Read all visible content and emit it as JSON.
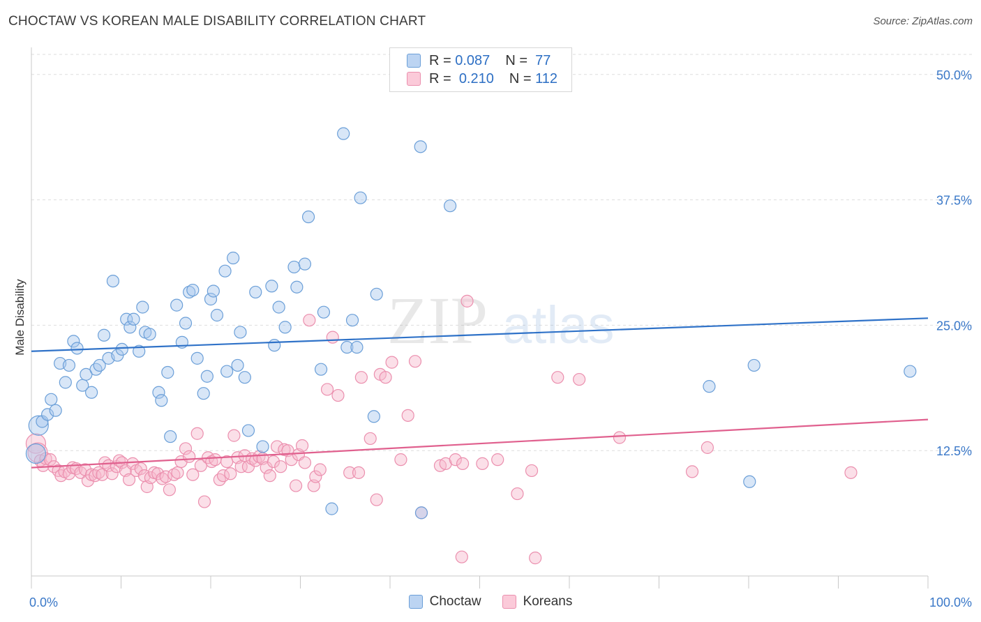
{
  "header": {
    "title": "CHOCTAW VS KOREAN MALE DISABILITY CORRELATION CHART",
    "source": "Source: ZipAtlas.com"
  },
  "legend_top": [
    {
      "r_label": "R =",
      "r_value": "0.087",
      "n_label": "N =",
      "n_value": "77"
    },
    {
      "r_label": "R =",
      "r_value": "0.210",
      "n_label": "N =",
      "n_value": "112"
    }
  ],
  "legend_bottom": [
    {
      "label": "Choctaw"
    },
    {
      "label": "Koreans"
    }
  ],
  "colors": {
    "choctaw_fill": "#a8c8ee",
    "choctaw_stroke": "#6b9fd8",
    "choctaw_line": "#2f72c8",
    "koreans_fill": "#f7b8cc",
    "koreans_stroke": "#eb8fae",
    "koreans_line": "#e0608e",
    "tick_label": "#3a78c8",
    "grid": "#dddddd"
  },
  "watermark": {
    "zip": "ZIP",
    "atlas": "atlas"
  },
  "chart_data": {
    "type": "scatter",
    "title": "CHOCTAW VS KOREAN MALE DISABILITY CORRELATION CHART",
    "xlabel": "",
    "ylabel": "Male Disability",
    "xlim": [
      0,
      100
    ],
    "ylim": [
      0,
      52
    ],
    "x_tick_labels": [
      "0.0%",
      "100.0%"
    ],
    "y_ticks": [
      12.5,
      25.0,
      37.5,
      50.0
    ],
    "y_tick_labels": [
      "12.5%",
      "25.0%",
      "37.5%",
      "50.0%"
    ],
    "grid": true,
    "legend_position": "top-center",
    "series": [
      {
        "name": "Choctaw",
        "r": 0.087,
        "n": 77,
        "trend": {
          "x": [
            0,
            100
          ],
          "y": [
            22.4,
            25.7
          ]
        },
        "points": [
          [
            0.5,
            12.2
          ],
          [
            0.8,
            15.0
          ],
          [
            1.2,
            15.4
          ],
          [
            1.8,
            16.1
          ],
          [
            2.2,
            17.6
          ],
          [
            2.7,
            16.5
          ],
          [
            3.2,
            21.2
          ],
          [
            3.8,
            19.3
          ],
          [
            4.2,
            21.0
          ],
          [
            4.7,
            23.4
          ],
          [
            5.1,
            22.7
          ],
          [
            5.7,
            19.0
          ],
          [
            6.1,
            20.1
          ],
          [
            6.7,
            18.3
          ],
          [
            7.2,
            20.6
          ],
          [
            7.6,
            21.0
          ],
          [
            8.1,
            24.0
          ],
          [
            8.6,
            21.7
          ],
          [
            9.1,
            29.4
          ],
          [
            9.6,
            22.0
          ],
          [
            10.1,
            22.6
          ],
          [
            10.6,
            25.6
          ],
          [
            11.0,
            24.8
          ],
          [
            11.4,
            25.6
          ],
          [
            12.0,
            22.4
          ],
          [
            12.4,
            26.8
          ],
          [
            12.7,
            24.3
          ],
          [
            13.2,
            24.1
          ],
          [
            14.2,
            18.3
          ],
          [
            14.5,
            17.5
          ],
          [
            15.2,
            20.3
          ],
          [
            15.5,
            13.9
          ],
          [
            16.2,
            27.0
          ],
          [
            16.8,
            23.3
          ],
          [
            17.2,
            25.2
          ],
          [
            17.6,
            28.3
          ],
          [
            18.0,
            28.5
          ],
          [
            18.5,
            21.7
          ],
          [
            19.2,
            18.2
          ],
          [
            19.6,
            19.9
          ],
          [
            20.0,
            27.6
          ],
          [
            20.3,
            28.4
          ],
          [
            20.7,
            26.0
          ],
          [
            21.6,
            30.4
          ],
          [
            21.8,
            20.4
          ],
          [
            22.5,
            31.7
          ],
          [
            23.0,
            21.0
          ],
          [
            23.3,
            24.3
          ],
          [
            23.8,
            19.8
          ],
          [
            24.2,
            14.5
          ],
          [
            25.0,
            28.3
          ],
          [
            25.8,
            12.9
          ],
          [
            26.8,
            28.9
          ],
          [
            27.1,
            23.0
          ],
          [
            27.6,
            26.8
          ],
          [
            28.3,
            24.8
          ],
          [
            29.3,
            30.8
          ],
          [
            29.6,
            28.8
          ],
          [
            30.5,
            31.1
          ],
          [
            30.9,
            35.8
          ],
          [
            32.3,
            20.6
          ],
          [
            32.6,
            26.3
          ],
          [
            33.5,
            6.7
          ],
          [
            34.8,
            44.1
          ],
          [
            35.2,
            22.8
          ],
          [
            35.8,
            25.5
          ],
          [
            36.3,
            22.8
          ],
          [
            36.7,
            37.7
          ],
          [
            38.2,
            15.9
          ],
          [
            38.5,
            28.1
          ],
          [
            43.4,
            42.8
          ],
          [
            43.5,
            6.3
          ],
          [
            46.7,
            36.9
          ],
          [
            75.6,
            18.9
          ],
          [
            80.6,
            21.0
          ],
          [
            80.1,
            9.4
          ],
          [
            98.0,
            20.4
          ]
        ]
      },
      {
        "name": "Koreans",
        "r": 0.21,
        "n": 112,
        "trend": {
          "x": [
            0,
            100
          ],
          "y": [
            10.8,
            15.6
          ]
        },
        "points": [
          [
            0.5,
            13.2
          ],
          [
            0.7,
            12.3
          ],
          [
            1.0,
            11.5
          ],
          [
            1.3,
            11.0
          ],
          [
            1.6,
            11.7
          ],
          [
            2.1,
            11.6
          ],
          [
            2.5,
            10.9
          ],
          [
            3.0,
            10.5
          ],
          [
            3.3,
            10.0
          ],
          [
            3.7,
            10.4
          ],
          [
            4.2,
            10.2
          ],
          [
            4.6,
            10.8
          ],
          [
            5.0,
            10.7
          ],
          [
            5.5,
            10.3
          ],
          [
            6.0,
            10.6
          ],
          [
            6.3,
            9.5
          ],
          [
            6.7,
            10.1
          ],
          [
            7.1,
            10.0
          ],
          [
            7.5,
            10.3
          ],
          [
            7.9,
            10.1
          ],
          [
            8.2,
            11.3
          ],
          [
            8.6,
            11.0
          ],
          [
            9.0,
            10.2
          ],
          [
            9.5,
            10.9
          ],
          [
            9.8,
            11.5
          ],
          [
            10.1,
            11.3
          ],
          [
            10.5,
            10.5
          ],
          [
            10.9,
            9.6
          ],
          [
            11.3,
            11.2
          ],
          [
            11.7,
            10.5
          ],
          [
            12.2,
            10.7
          ],
          [
            12.6,
            10.0
          ],
          [
            12.9,
            8.9
          ],
          [
            13.3,
            9.8
          ],
          [
            13.7,
            10.3
          ],
          [
            14.1,
            10.2
          ],
          [
            14.6,
            9.7
          ],
          [
            15.0,
            9.9
          ],
          [
            15.4,
            8.6
          ],
          [
            15.9,
            10.1
          ],
          [
            16.3,
            10.3
          ],
          [
            16.7,
            11.4
          ],
          [
            17.2,
            12.7
          ],
          [
            17.6,
            11.9
          ],
          [
            18.0,
            10.1
          ],
          [
            18.5,
            14.2
          ],
          [
            18.9,
            11.0
          ],
          [
            19.3,
            7.4
          ],
          [
            19.7,
            11.8
          ],
          [
            20.1,
            11.4
          ],
          [
            20.5,
            11.6
          ],
          [
            21.0,
            9.6
          ],
          [
            21.4,
            10.0
          ],
          [
            21.8,
            11.4
          ],
          [
            22.2,
            10.2
          ],
          [
            22.6,
            14.0
          ],
          [
            23.0,
            11.8
          ],
          [
            23.4,
            10.9
          ],
          [
            23.8,
            12.0
          ],
          [
            24.2,
            10.9
          ],
          [
            24.6,
            11.7
          ],
          [
            25.0,
            11.5
          ],
          [
            25.4,
            11.9
          ],
          [
            25.8,
            11.7
          ],
          [
            26.2,
            10.8
          ],
          [
            26.6,
            10.0
          ],
          [
            27.0,
            11.4
          ],
          [
            27.4,
            12.9
          ],
          [
            27.8,
            10.9
          ],
          [
            28.2,
            12.6
          ],
          [
            28.6,
            12.5
          ],
          [
            29.0,
            11.6
          ],
          [
            29.5,
            9.0
          ],
          [
            29.8,
            12.1
          ],
          [
            30.2,
            13.0
          ],
          [
            30.5,
            11.3
          ],
          [
            31.0,
            25.5
          ],
          [
            31.5,
            9.0
          ],
          [
            31.7,
            9.9
          ],
          [
            32.2,
            10.6
          ],
          [
            33.0,
            18.6
          ],
          [
            33.6,
            23.8
          ],
          [
            34.2,
            18.0
          ],
          [
            35.5,
            10.3
          ],
          [
            36.5,
            10.3
          ],
          [
            36.8,
            19.8
          ],
          [
            37.8,
            13.7
          ],
          [
            38.5,
            7.6
          ],
          [
            38.9,
            20.1
          ],
          [
            39.5,
            19.8
          ],
          [
            40.2,
            21.3
          ],
          [
            41.2,
            11.6
          ],
          [
            42.0,
            16.0
          ],
          [
            42.8,
            21.4
          ],
          [
            43.5,
            6.3
          ],
          [
            45.6,
            11.0
          ],
          [
            46.2,
            11.2
          ],
          [
            47.3,
            11.6
          ],
          [
            48.1,
            11.2
          ],
          [
            48.6,
            27.4
          ],
          [
            50.3,
            11.2
          ],
          [
            52.0,
            11.6
          ],
          [
            54.2,
            8.2
          ],
          [
            55.8,
            10.5
          ],
          [
            58.7,
            19.8
          ],
          [
            61.1,
            19.6
          ],
          [
            65.6,
            13.8
          ],
          [
            73.7,
            10.4
          ],
          [
            75.4,
            12.8
          ],
          [
            91.4,
            10.3
          ],
          [
            48.0,
            1.9
          ],
          [
            56.2,
            1.8
          ]
        ]
      }
    ]
  }
}
